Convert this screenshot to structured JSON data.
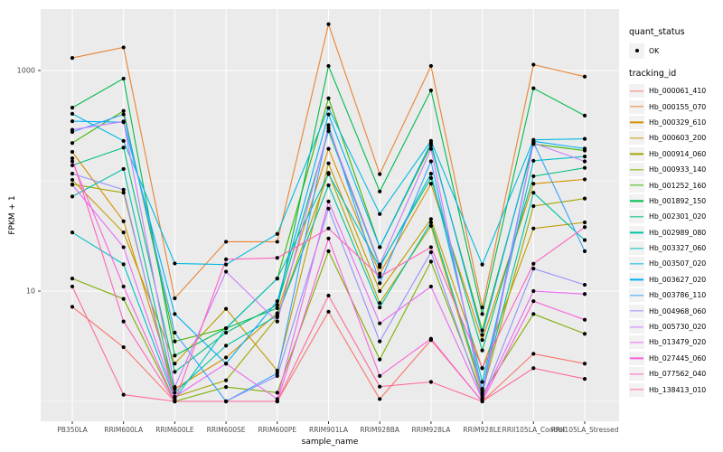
{
  "figure": {
    "background": "#FFFFFF",
    "panel_background": "#EBEBEB",
    "grid_color": "#FFFFFF",
    "tick_color": "#333333",
    "axis_text_color": "#4D4D4D",
    "point_color": "#000000"
  },
  "legend": {
    "quant_status_title": "quant_status",
    "quant_status_item": "OK",
    "tracking_id_title": "tracking_id"
  },
  "chart_data": {
    "type": "line",
    "title": "",
    "xlabel": "sample_name",
    "ylabel": "FPKM + 1",
    "y_scale": "log10",
    "ylim": [
      0.66,
      3630
    ],
    "y_ticks": [
      {
        "value": 10,
        "label": "10"
      },
      {
        "value": 1000,
        "label": "1000"
      }
    ],
    "y_minor_gridlines": [
      1,
      100
    ],
    "grid": true,
    "legend_position": "right",
    "categories": [
      "PB350LA",
      "RRIM600LA",
      "RRIM600LE",
      "RRIM600SE",
      "RRIM600PE",
      "RRIM901LA",
      "RRIM928BA",
      "RRIM928LA",
      "RRIM928LE",
      "RRII105LA_Control",
      "RRII105LA_Stressed"
    ],
    "series": [
      {
        "name": "Hb_000061_410",
        "color": "#F8766D",
        "values": [
          7.2,
          3.1,
          1.0,
          1.0,
          1.0,
          6.5,
          1.05,
          3.6,
          1.0,
          2.7,
          2.2
        ]
      },
      {
        "name": "Hb_000155_070",
        "color": "#EA8331",
        "values": [
          1300,
          1620,
          8.6,
          28,
          28,
          2630,
          115,
          1100,
          7.1,
          1130,
          880
        ]
      },
      {
        "name": "Hb_000329_610",
        "color": "#D89000",
        "values": [
          183,
          43,
          1.3,
          2.5,
          6.3,
          195,
          14.4,
          94,
          3.6,
          94,
          103
        ]
      },
      {
        "name": "Hb_000603_200",
        "color": "#C09B00",
        "values": [
          102,
          34,
          2.2,
          6.9,
          1.9,
          144,
          10,
          45,
          2.0,
          37,
          42
        ]
      },
      {
        "name": "Hb_000914_060",
        "color": "#A3A500",
        "values": [
          93,
          78,
          1.1,
          1.55,
          5.8,
          118,
          7.8,
          39,
          1.2,
          59,
          69
        ]
      },
      {
        "name": "Hb_000933_140",
        "color": "#7CAE00",
        "values": [
          13,
          8.5,
          1.0,
          1.35,
          1.2,
          23,
          2.4,
          18.5,
          1.15,
          6.2,
          4.1
        ]
      },
      {
        "name": "Hb_001252_160",
        "color": "#39B600",
        "values": [
          220,
          430,
          3.5,
          4.6,
          13,
          560,
          25,
          210,
          4.4,
          215,
          188
        ]
      },
      {
        "name": "Hb_001892_150",
        "color": "#00BB4E",
        "values": [
          460,
          845,
          2.6,
          4.6,
          7.0,
          1100,
          80,
          660,
          6.2,
          690,
          390
        ]
      },
      {
        "name": "Hb_002301_020",
        "color": "#00BF7D",
        "values": [
          138,
          200,
          1.85,
          4.2,
          7.5,
          282,
          17,
          106,
          2.9,
          110,
          131
        ]
      },
      {
        "name": "Hb_002989_080",
        "color": "#00C1A3",
        "values": [
          72,
          128,
          1.2,
          3.2,
          6.0,
          91,
          7.1,
          42,
          1.3,
          78,
          29
        ]
      },
      {
        "name": "Hb_003327_060",
        "color": "#00BFC4",
        "values": [
          34,
          17.5,
          1.05,
          4.6,
          13,
          115,
          16.5,
          116,
          1.5,
          152,
          166
        ]
      },
      {
        "name": "Hb_003507_020",
        "color": "#00BAE0",
        "values": [
          405,
          230,
          17.8,
          17.4,
          33,
          457,
          50,
          230,
          17.4,
          235,
          240
        ]
      },
      {
        "name": "Hb_003627_020",
        "color": "#00B0F6",
        "values": [
          347,
          340,
          6.2,
          2.2,
          8.1,
          400,
          25,
          220,
          4.0,
          228,
          196
        ]
      },
      {
        "name": "Hb_003786_110",
        "color": "#35A2FF",
        "values": [
          277,
          400,
          4.2,
          1.0,
          1.8,
          320,
          11.8,
          150,
          1.25,
          222,
          23
        ]
      },
      {
        "name": "Hb_004968_060",
        "color": "#9590FF",
        "values": [
          116,
          83,
          1.0,
          1.0,
          1.7,
          56,
          3.5,
          22.5,
          1.05,
          16,
          11.4
        ]
      },
      {
        "name": "Hb_005730_020",
        "color": "#C77CFF",
        "values": [
          290,
          345,
          1.35,
          15,
          5.3,
          300,
          17.4,
          195,
          1.1,
          220,
          150
        ]
      },
      {
        "name": "Hb_013479_020",
        "color": "#E76BF3",
        "values": [
          92,
          25,
          1.1,
          2.2,
          1.05,
          65,
          5.1,
          11,
          1.05,
          10,
          9.4
        ]
      },
      {
        "name": "Hb_027445_060",
        "color": "#FA62DB",
        "values": [
          150,
          11,
          1.0,
          1.0,
          1.0,
          30,
          1.7,
          3.7,
          1.0,
          8.1,
          5.5
        ]
      },
      {
        "name": "Hb_077562_040",
        "color": "#FF62BC",
        "values": [
          160,
          5.3,
          1.0,
          19.4,
          20,
          37,
          13.5,
          25,
          2.0,
          17.7,
          38
        ]
      },
      {
        "name": "Hb_138413_010",
        "color": "#FF6A98",
        "values": [
          11,
          1.15,
          1.0,
          1.0,
          1.0,
          9.1,
          1.36,
          1.5,
          1.0,
          2.0,
          1.6
        ]
      }
    ]
  }
}
